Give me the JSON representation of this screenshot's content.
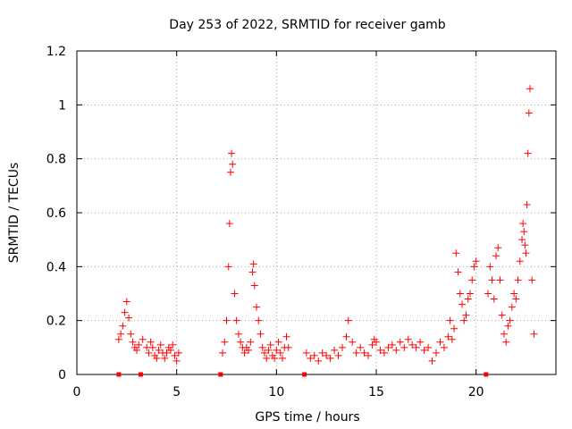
{
  "chart_data": {
    "type": "scatter",
    "title": "Day 253 of 2022, SRMTID for receiver gamb",
    "xlabel": "GPS time / hours",
    "ylabel": "SRMTID / TECUs",
    "xlim": [
      0,
      24
    ],
    "ylim": [
      0,
      1.2
    ],
    "xticks": [
      0,
      5,
      10,
      15,
      20
    ],
    "xtick_labels": [
      "0",
      "5",
      "10",
      "15",
      "20"
    ],
    "yticks": [
      0,
      0.2,
      0.4,
      0.6,
      0.8,
      1,
      1.2
    ],
    "ytick_labels": [
      "0",
      "0.2",
      "0.4",
      "0.6",
      "0.8",
      "1",
      "1.2"
    ],
    "grid": true,
    "marker": "plus",
    "colors": {
      "series": "#ff0000",
      "axes": "#000000",
      "grid": "#a0a0a0"
    },
    "series": [
      {
        "name": "SRMTID",
        "x": [
          2.1,
          2.2,
          2.3,
          2.4,
          2.5,
          2.6,
          2.7,
          2.8,
          2.9,
          3.0,
          3.1,
          3.3,
          3.5,
          3.6,
          3.7,
          3.8,
          3.9,
          4.0,
          4.1,
          4.2,
          4.3,
          4.4,
          4.5,
          4.6,
          4.7,
          4.8,
          4.9,
          5.0,
          5.1,
          7.3,
          7.4,
          7.5,
          7.6,
          7.65,
          7.7,
          7.75,
          7.8,
          7.9,
          8.0,
          8.1,
          8.2,
          8.3,
          8.4,
          8.5,
          8.6,
          8.7,
          8.8,
          8.85,
          8.9,
          9.0,
          9.1,
          9.2,
          9.3,
          9.4,
          9.5,
          9.6,
          9.7,
          9.8,
          9.9,
          10.0,
          10.1,
          10.2,
          10.3,
          10.4,
          10.5,
          10.6,
          11.5,
          11.7,
          11.9,
          12.1,
          12.3,
          12.5,
          12.7,
          12.9,
          13.1,
          13.3,
          13.5,
          13.6,
          13.8,
          14.0,
          14.2,
          14.4,
          14.6,
          14.8,
          14.9,
          15.0,
          15.2,
          15.4,
          15.6,
          15.8,
          16.0,
          16.2,
          16.4,
          16.6,
          16.8,
          17.0,
          17.2,
          17.4,
          17.6,
          17.8,
          18.0,
          18.2,
          18.4,
          18.6,
          18.7,
          18.8,
          18.9,
          19.0,
          19.1,
          19.2,
          19.3,
          19.4,
          19.5,
          19.6,
          19.7,
          19.8,
          19.9,
          20.0,
          20.6,
          20.7,
          20.8,
          20.9,
          21.0,
          21.1,
          21.2,
          21.3,
          21.4,
          21.5,
          21.6,
          21.7,
          21.8,
          21.9,
          22.0,
          22.1,
          22.2,
          22.3,
          22.35,
          22.4,
          22.45,
          22.5,
          22.55,
          22.6,
          22.65,
          22.7,
          22.8,
          22.9
        ],
        "y": [
          0.13,
          0.15,
          0.18,
          0.23,
          0.27,
          0.21,
          0.15,
          0.12,
          0.1,
          0.09,
          0.11,
          0.13,
          0.1,
          0.08,
          0.12,
          0.1,
          0.07,
          0.06,
          0.09,
          0.11,
          0.08,
          0.06,
          0.08,
          0.1,
          0.09,
          0.11,
          0.07,
          0.05,
          0.08,
          0.08,
          0.12,
          0.2,
          0.4,
          0.56,
          0.75,
          0.82,
          0.78,
          0.3,
          0.2,
          0.15,
          0.12,
          0.1,
          0.08,
          0.1,
          0.09,
          0.12,
          0.38,
          0.41,
          0.33,
          0.25,
          0.2,
          0.15,
          0.1,
          0.08,
          0.06,
          0.09,
          0.11,
          0.07,
          0.06,
          0.09,
          0.12,
          0.08,
          0.06,
          0.1,
          0.14,
          0.1,
          0.08,
          0.06,
          0.07,
          0.05,
          0.08,
          0.07,
          0.06,
          0.09,
          0.07,
          0.1,
          0.14,
          0.2,
          0.12,
          0.08,
          0.1,
          0.08,
          0.07,
          0.11,
          0.13,
          0.12,
          0.09,
          0.08,
          0.1,
          0.11,
          0.09,
          0.12,
          0.1,
          0.13,
          0.11,
          0.1,
          0.12,
          0.09,
          0.1,
          0.05,
          0.08,
          0.12,
          0.1,
          0.14,
          0.2,
          0.13,
          0.17,
          0.45,
          0.38,
          0.3,
          0.26,
          0.2,
          0.22,
          0.28,
          0.3,
          0.35,
          0.4,
          0.42,
          0.3,
          0.4,
          0.35,
          0.28,
          0.44,
          0.47,
          0.35,
          0.22,
          0.15,
          0.12,
          0.18,
          0.2,
          0.25,
          0.3,
          0.28,
          0.35,
          0.42,
          0.5,
          0.56,
          0.53,
          0.48,
          0.45,
          0.63,
          0.82,
          0.97,
          1.06,
          0.35,
          0.15
        ]
      }
    ],
    "gap_markers_x": [
      2.1,
      3.2,
      7.2,
      11.4,
      20.5
    ]
  }
}
